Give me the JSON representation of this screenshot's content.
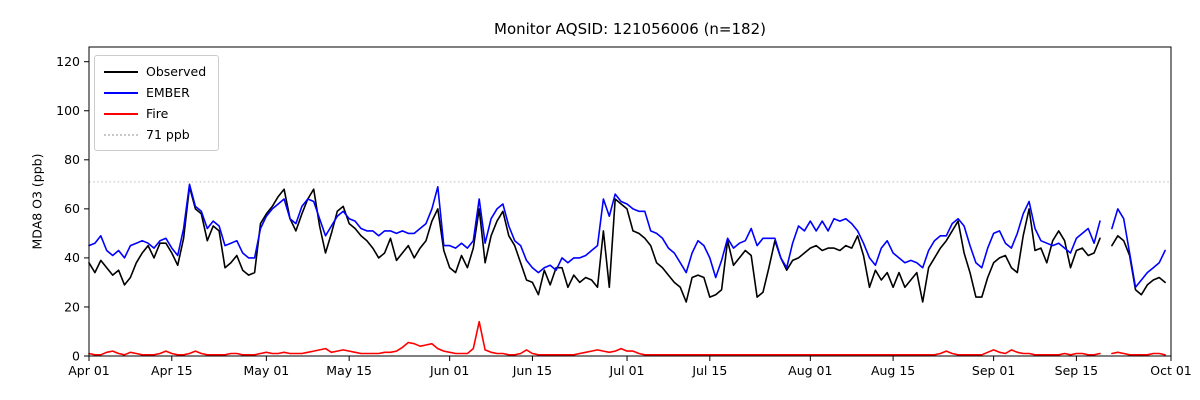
{
  "chart_data": {
    "type": "line",
    "title": "Monitor AQSID: 121056006 (n=182)",
    "xlabel": "",
    "ylabel": "MDA8 O3 (ppb)",
    "ylim": [
      0,
      126
    ],
    "yticks": [
      0,
      20,
      40,
      60,
      80,
      100,
      120
    ],
    "grid": false,
    "legend_position": "upper left",
    "x_unit": "day",
    "date_range": [
      "Apr 01",
      "Sep 30"
    ],
    "total_days": 183,
    "missing_day_index": 172,
    "missing_day_label": "Sep 20",
    "n_observations": 182,
    "xticks": [
      {
        "label": "Apr 01",
        "day": 0
      },
      {
        "label": "Apr 15",
        "day": 14
      },
      {
        "label": "May 01",
        "day": 30
      },
      {
        "label": "May 15",
        "day": 44
      },
      {
        "label": "Jun 01",
        "day": 61
      },
      {
        "label": "Jun 15",
        "day": 75
      },
      {
        "label": "Jul 01",
        "day": 91
      },
      {
        "label": "Jul 15",
        "day": 105
      },
      {
        "label": "Aug 01",
        "day": 122
      },
      {
        "label": "Aug 15",
        "day": 136
      },
      {
        "label": "Sep 01",
        "day": 153
      },
      {
        "label": "Sep 15",
        "day": 167
      },
      {
        "label": "Oct 01",
        "day": 183
      }
    ],
    "threshold": {
      "label": "71 ppb",
      "value": 71,
      "color": "#c8c8c8"
    },
    "series": [
      {
        "name": "Observed",
        "color": "#000000",
        "values": [
          38,
          34,
          39,
          36,
          33,
          35,
          29,
          32,
          38,
          42,
          45,
          40,
          46,
          46,
          42,
          37,
          48,
          69,
          60,
          58,
          47,
          53,
          51,
          36,
          38,
          41,
          35,
          33,
          34,
          54,
          58,
          61,
          65,
          68,
          56,
          51,
          58,
          64,
          68,
          53,
          42,
          50,
          59,
          61,
          54,
          52,
          49,
          47,
          44,
          40,
          42,
          48,
          39,
          42,
          45,
          40,
          44,
          47,
          55,
          60,
          43,
          36,
          34,
          41,
          36,
          44,
          60,
          38,
          49,
          55,
          59,
          49,
          45,
          38,
          31,
          30,
          25,
          35,
          29,
          36,
          36,
          28,
          33,
          30,
          32,
          31,
          28,
          51,
          28,
          64,
          62,
          60,
          51,
          50,
          48,
          45,
          38,
          36,
          33,
          30,
          28,
          22,
          32,
          33,
          32,
          24,
          25,
          27,
          47,
          37,
          40,
          43,
          41,
          24,
          26,
          36,
          47,
          40,
          35,
          39,
          40,
          42,
          44,
          45,
          43,
          44,
          44,
          43,
          45,
          44,
          49,
          41,
          28,
          35,
          31,
          34,
          28,
          34,
          28,
          31,
          34,
          22,
          36,
          40,
          44,
          47,
          51,
          55,
          42,
          34,
          24,
          24,
          32,
          38,
          40,
          41,
          36,
          34,
          49,
          60,
          43,
          44,
          38,
          47,
          51,
          47,
          36,
          43,
          44,
          41,
          42,
          48,
          null,
          45,
          49,
          47,
          41,
          27,
          25,
          29,
          31,
          32,
          30
        ]
      },
      {
        "name": "EMBER",
        "color": "#0000ff",
        "values": [
          45,
          46,
          49,
          43,
          41,
          43,
          40,
          45,
          46,
          47,
          46,
          44,
          47,
          48,
          44,
          41,
          52,
          70,
          61,
          59,
          52,
          55,
          53,
          45,
          46,
          47,
          42,
          40,
          40,
          52,
          57,
          60,
          62,
          64,
          56,
          54,
          61,
          64,
          63,
          56,
          49,
          53,
          57,
          59,
          56,
          55,
          52,
          51,
          51,
          49,
          51,
          51,
          50,
          51,
          50,
          50,
          52,
          54,
          60,
          69,
          45,
          45,
          44,
          46,
          44,
          47,
          64,
          46,
          56,
          60,
          62,
          53,
          47,
          45,
          39,
          36,
          34,
          36,
          37,
          35,
          40,
          38,
          40,
          40,
          41,
          43,
          45,
          64,
          57,
          66,
          63,
          62,
          60,
          59,
          59,
          51,
          50,
          48,
          44,
          42,
          38,
          34,
          42,
          47,
          45,
          40,
          32,
          39,
          48,
          44,
          46,
          47,
          52,
          45,
          48,
          48,
          48,
          40,
          36,
          46,
          53,
          51,
          55,
          51,
          55,
          51,
          56,
          55,
          56,
          54,
          51,
          46,
          40,
          37,
          44,
          47,
          42,
          40,
          38,
          39,
          38,
          36,
          43,
          47,
          49,
          49,
          54,
          56,
          53,
          45,
          38,
          36,
          44,
          50,
          51,
          46,
          44,
          50,
          58,
          63,
          52,
          47,
          46,
          45,
          46,
          44,
          42,
          48,
          50,
          52,
          46,
          55,
          null,
          52,
          60,
          56,
          42,
          28,
          31,
          34,
          36,
          38,
          43
        ]
      },
      {
        "name": "Fire",
        "color": "#ff0000",
        "values": [
          1,
          0.5,
          0.5,
          1.5,
          2,
          1,
          0.5,
          1.5,
          1,
          0.5,
          0.5,
          0.5,
          1,
          2,
          1,
          0.5,
          0.5,
          1,
          2,
          1,
          0.5,
          0.5,
          0.5,
          0.5,
          1,
          1,
          0.5,
          0.5,
          0.5,
          1,
          1.5,
          1,
          1,
          1.5,
          1,
          1,
          1,
          1.5,
          2,
          2.5,
          3,
          1.5,
          2,
          2.5,
          2,
          1.5,
          1,
          1,
          1,
          1,
          1.5,
          1.5,
          2,
          3.5,
          5.5,
          5,
          4,
          4.5,
          5,
          3,
          2,
          1.5,
          1,
          1,
          1,
          3,
          14,
          2.5,
          1.5,
          1,
          1,
          0.5,
          0.5,
          1,
          2.5,
          1,
          0.5,
          0.5,
          0.5,
          0.5,
          0.5,
          0.5,
          0.5,
          1,
          1.5,
          2,
          2.5,
          2,
          1.5,
          2,
          3,
          2,
          2,
          1,
          0.5,
          0.5,
          0.5,
          0.5,
          0.5,
          0.5,
          0.5,
          0.5,
          0.5,
          0.5,
          0.5,
          0.5,
          0.5,
          0.5,
          0.5,
          0.5,
          0.5,
          0.5,
          0.5,
          0.5,
          0.5,
          0.5,
          0.5,
          0.5,
          0.5,
          0.5,
          0.5,
          0.5,
          0.5,
          0.5,
          0.5,
          0.5,
          0.5,
          0.5,
          0.5,
          0.5,
          0.5,
          0.5,
          0.5,
          0.5,
          0.5,
          0.5,
          0.5,
          0.5,
          0.5,
          0.5,
          0.5,
          0.5,
          0.5,
          0.5,
          1,
          2,
          1,
          0.5,
          0.5,
          0.5,
          0.5,
          0.5,
          1.5,
          2.5,
          1.5,
          1,
          2.5,
          1.5,
          1,
          1,
          0.5,
          0.5,
          0.5,
          0.5,
          0.5,
          1,
          0.5,
          1,
          1,
          0.5,
          0.5,
          1,
          null,
          1,
          1.5,
          1,
          0.5,
          0.5,
          0.5,
          0.5,
          1,
          1,
          0.5
        ]
      }
    ]
  }
}
